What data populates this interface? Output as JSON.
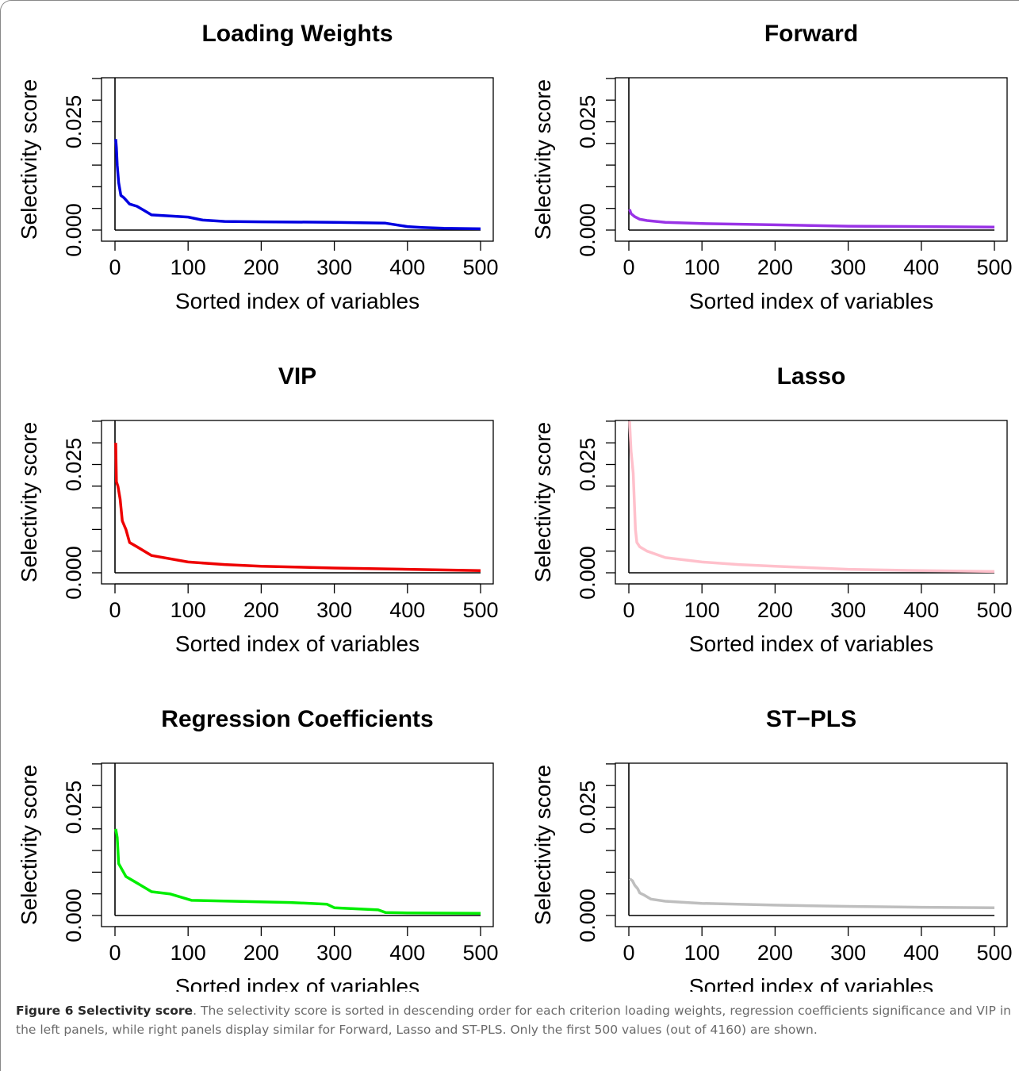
{
  "figure": {
    "label": "Figure 6",
    "title": "Selectivity score",
    "caption": ". The selectivity score is sorted in descending order for each criterion loading weights, regression coefficients significance and VIP in the left panels, while right panels display similar for Forward, Lasso and ST-PLS. Only the first 500 values (out of 4160) are shown."
  },
  "chart_data": [
    {
      "type": "line",
      "title": "Loading Weights",
      "xlabel": "Sorted index of variables",
      "ylabel": "Selectivity score",
      "xlim": [
        0,
        500
      ],
      "ylim": [
        0,
        0.035
      ],
      "xticks": [
        "0",
        "100",
        "200",
        "300",
        "400",
        "500"
      ],
      "yticks": [
        "0.000",
        "",
        "",
        "",
        "",
        "0.025",
        ""
      ],
      "color": "#0000e0",
      "series": [
        {
          "x": [
            1,
            2,
            3,
            5,
            8,
            12,
            20,
            30,
            40,
            50,
            80,
            100,
            120,
            150,
            200,
            300,
            370,
            400,
            420,
            450,
            500
          ],
          "y": [
            0.021,
            0.019,
            0.015,
            0.011,
            0.008,
            0.0075,
            0.006,
            0.0055,
            0.0045,
            0.0035,
            0.0032,
            0.003,
            0.0023,
            0.002,
            0.0019,
            0.0018,
            0.0016,
            0.0008,
            0.0006,
            0.0004,
            0.0003
          ]
        }
      ]
    },
    {
      "type": "line",
      "title": "Forward",
      "xlabel": "Sorted index of variables",
      "ylabel": "Selectivity score",
      "xlim": [
        0,
        500
      ],
      "ylim": [
        0,
        0.035
      ],
      "xticks": [
        "0",
        "100",
        "200",
        "300",
        "400",
        "500"
      ],
      "yticks": [
        "0.000",
        "",
        "",
        "",
        "",
        "0.025",
        ""
      ],
      "color": "#9933e6",
      "series": [
        {
          "x": [
            1,
            3,
            8,
            15,
            25,
            50,
            100,
            200,
            300,
            400,
            500
          ],
          "y": [
            0.0048,
            0.0038,
            0.0031,
            0.0025,
            0.0022,
            0.0018,
            0.0015,
            0.0012,
            0.0009,
            0.0008,
            0.0007
          ]
        }
      ]
    },
    {
      "type": "line",
      "title": "VIP",
      "xlabel": "Sorted index of variables",
      "ylabel": "Selectivity score",
      "xlim": [
        0,
        500
      ],
      "ylim": [
        0,
        0.035
      ],
      "xticks": [
        "0",
        "100",
        "200",
        "300",
        "400",
        "500"
      ],
      "yticks": [
        "0.000",
        "",
        "",
        "",
        "",
        "0.025",
        ""
      ],
      "color": "#ee0000",
      "series": [
        {
          "x": [
            1,
            2,
            4,
            7,
            10,
            15,
            20,
            30,
            50,
            100,
            150,
            200,
            300,
            400,
            500
          ],
          "y": [
            0.03,
            0.021,
            0.02,
            0.017,
            0.012,
            0.01,
            0.007,
            0.006,
            0.004,
            0.0025,
            0.0019,
            0.0015,
            0.0011,
            0.0008,
            0.0005
          ]
        }
      ]
    },
    {
      "type": "line",
      "title": "Lasso",
      "xlabel": "Sorted index of variables",
      "ylabel": "Selectivity score",
      "xlim": [
        0,
        500
      ],
      "ylim": [
        0,
        0.035
      ],
      "xticks": [
        "0",
        "100",
        "200",
        "300",
        "400",
        "500"
      ],
      "yticks": [
        "0.000",
        "",
        "",
        "",
        "",
        "0.025",
        ""
      ],
      "color": "#ffc0cb",
      "series": [
        {
          "x": [
            1,
            3,
            6,
            9,
            11,
            15,
            25,
            50,
            100,
            150,
            200,
            300,
            400,
            500
          ],
          "y": [
            0.035,
            0.028,
            0.023,
            0.01,
            0.007,
            0.006,
            0.005,
            0.0035,
            0.0025,
            0.0019,
            0.0015,
            0.0008,
            0.0005,
            0.0003
          ]
        }
      ]
    },
    {
      "type": "line",
      "title": "Regression Coefficients",
      "xlabel": "Sorted index of variables",
      "ylabel": "Selectivity score",
      "xlim": [
        0,
        500
      ],
      "ylim": [
        0,
        0.035
      ],
      "xticks": [
        "0",
        "100",
        "200",
        "300",
        "400",
        "500"
      ],
      "yticks": [
        "0.000",
        "",
        "",
        "",
        "",
        "0.025",
        ""
      ],
      "color": "#00ee00",
      "series": [
        {
          "x": [
            1,
            3,
            5,
            10,
            15,
            25,
            35,
            50,
            75,
            85,
            105,
            240,
            290,
            300,
            360,
            370,
            400,
            500
          ],
          "y": [
            0.02,
            0.018,
            0.012,
            0.0105,
            0.009,
            0.008,
            0.007,
            0.0055,
            0.005,
            0.0045,
            0.0035,
            0.003,
            0.0026,
            0.0018,
            0.0013,
            0.0007,
            0.0006,
            0.0005
          ]
        }
      ]
    },
    {
      "type": "line",
      "title": "ST−PLS",
      "xlabel": "Sorted index of variables",
      "ylabel": "Selectivity score",
      "xlim": [
        0,
        500
      ],
      "ylim": [
        0,
        0.035
      ],
      "xticks": [
        "0",
        "100",
        "200",
        "300",
        "400",
        "500"
      ],
      "yticks": [
        "0.000",
        "",
        "",
        "",
        "",
        "0.025",
        ""
      ],
      "color": "#bebebe",
      "series": [
        {
          "x": [
            1,
            5,
            8,
            12,
            15,
            20,
            30,
            50,
            100,
            200,
            300,
            400,
            500
          ],
          "y": [
            0.0085,
            0.008,
            0.007,
            0.0062,
            0.0052,
            0.0048,
            0.0038,
            0.0033,
            0.0028,
            0.0024,
            0.0021,
            0.0019,
            0.0018
          ]
        }
      ]
    }
  ]
}
